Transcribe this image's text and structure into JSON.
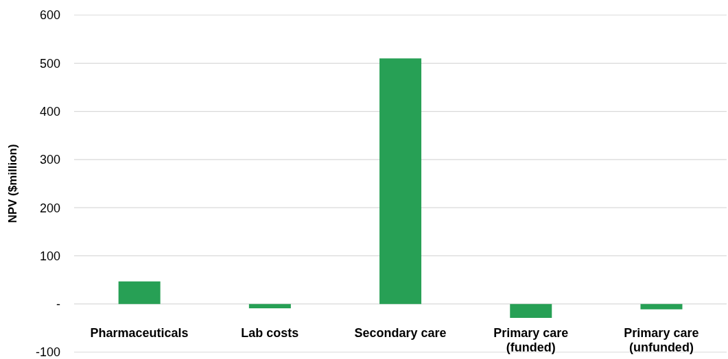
{
  "chart_data": {
    "type": "bar",
    "ylabel": "NPV ($million)",
    "categories": [
      "Pharmaceuticals",
      "Lab costs",
      "Secondary care",
      "Primary care (funded)",
      "Primary care (unfunded)"
    ],
    "values": [
      47,
      -9,
      510,
      -29,
      -11
    ],
    "color": "#27a055",
    "ylim": [
      -100,
      600
    ],
    "yticks": [
      -100,
      {
        "value": 0,
        "label": "-"
      },
      100,
      200,
      300,
      400,
      500,
      600
    ],
    "grid": "y"
  }
}
